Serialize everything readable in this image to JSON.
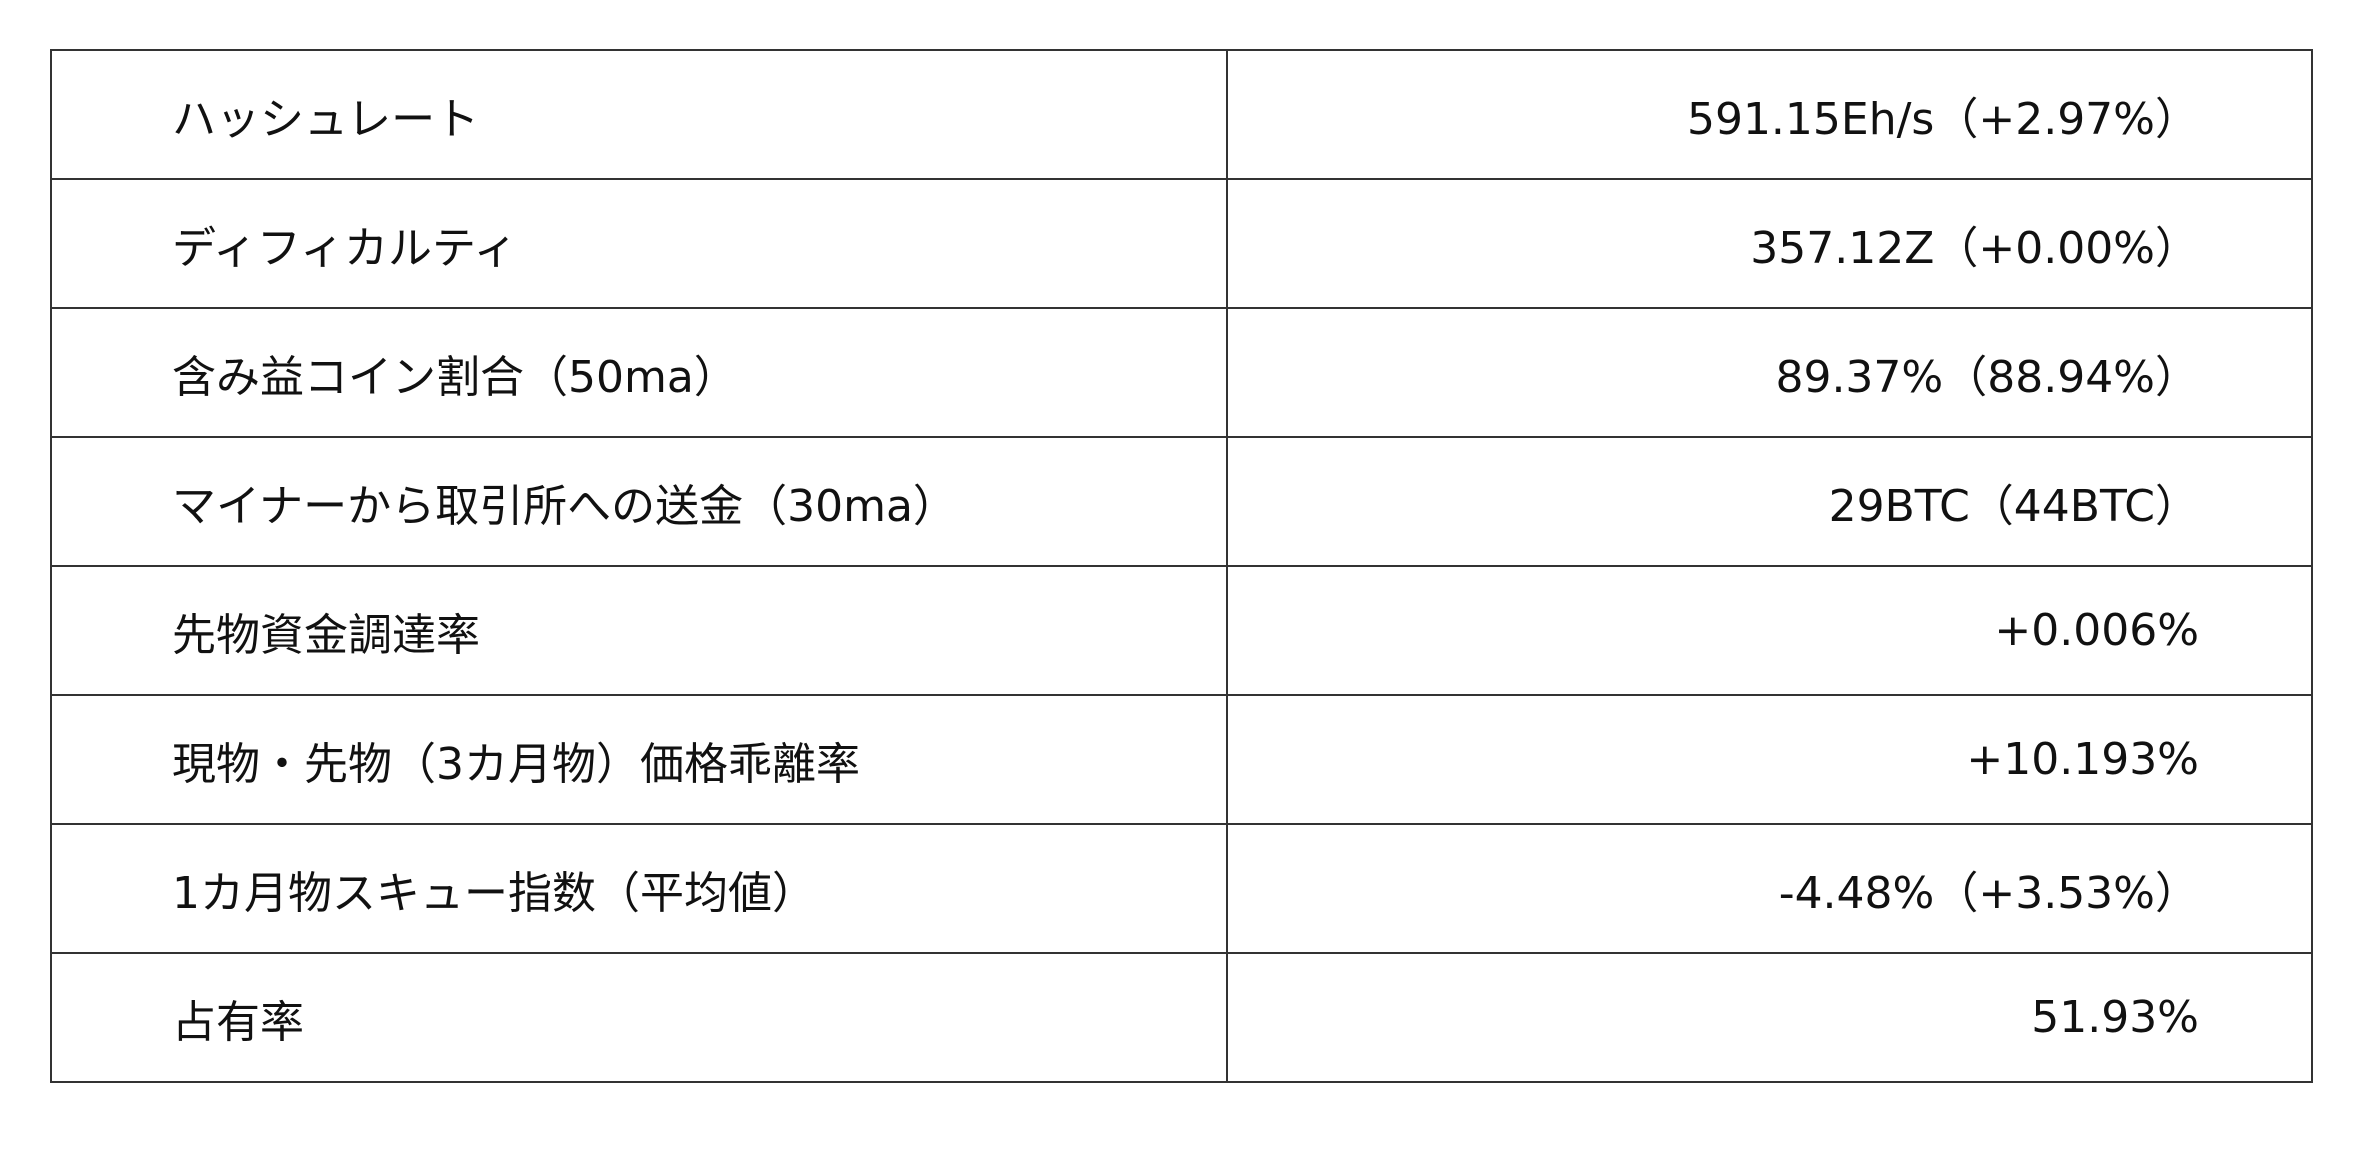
{
  "rows": [
    {
      "label": "ハッシュレート",
      "value": "591.15Eh/s（+2.97%）"
    },
    {
      "label": "ディフィカルティ",
      "value": "357.12Z（+0.00%）"
    },
    {
      "label": "含み益コイン割合（50ma）",
      "value": "89.37%（88.94%）"
    },
    {
      "label": "マイナーから取引所への送金（30ma）",
      "value": "29BTC（44BTC）"
    },
    {
      "label": "先物資金調達率",
      "value": "+0.006%"
    },
    {
      "label": "現物・先物（3カ月物）価格乖離率",
      "value": "+10.193%"
    },
    {
      "label": "1カ月物スキュー指数（平均値）",
      "value": "-4.48%（+3.53%）"
    },
    {
      "label": "占有率",
      "value": "51.93%"
    }
  ]
}
